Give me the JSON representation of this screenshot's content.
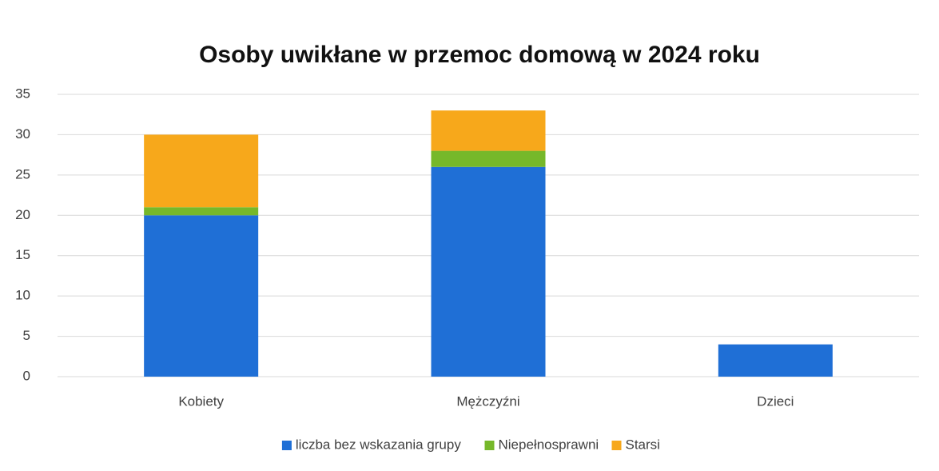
{
  "chart_data": {
    "type": "stacked_bar",
    "title": "Osoby uwikłane w przemoc domową w 2024 roku",
    "categories": [
      "Kobiety",
      "Mężczyźni",
      "Dzieci"
    ],
    "series": [
      {
        "name": "liczba bez wskazania grupy",
        "color": "#1f6fd6",
        "values": [
          20,
          26,
          4
        ]
      },
      {
        "name": "Niepełnosprawni",
        "color": "#76b82a",
        "values": [
          1,
          2,
          0
        ]
      },
      {
        "name": "Starsi",
        "color": "#f7a81b",
        "values": [
          9,
          5,
          0
        ]
      }
    ],
    "ylim": [
      0,
      35
    ],
    "yticks": [
      0,
      5,
      10,
      15,
      20,
      25,
      30,
      35
    ],
    "grid": true,
    "legend": "bottom"
  }
}
